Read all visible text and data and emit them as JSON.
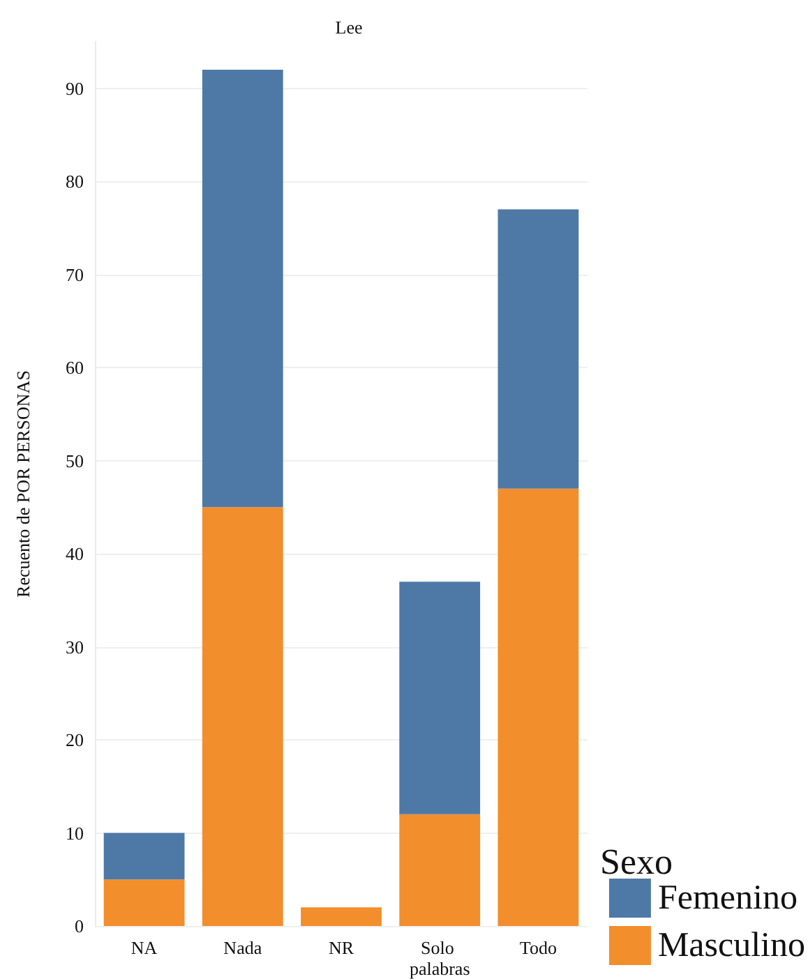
{
  "chart_data": {
    "type": "bar",
    "title": "Lee",
    "ylabel": "Recuento de POR PERSONAS",
    "legend_title": "Sexo",
    "categories": [
      "NA",
      "Nada",
      "NR",
      "Solo palabras",
      "Todo"
    ],
    "stacked": true,
    "series": [
      {
        "name": "Masculino",
        "color": "#f28e2b",
        "values": [
          5,
          45,
          2,
          12,
          47
        ]
      },
      {
        "name": "Femenino",
        "color": "#4e79a7",
        "values": [
          5,
          47,
          null,
          25,
          30
        ]
      }
    ],
    "ylim": [
      0,
      95
    ],
    "yticks": [
      0,
      10,
      20,
      30,
      40,
      50,
      60,
      70,
      80,
      90
    ],
    "grid": "y",
    "legend": "bottom right"
  }
}
